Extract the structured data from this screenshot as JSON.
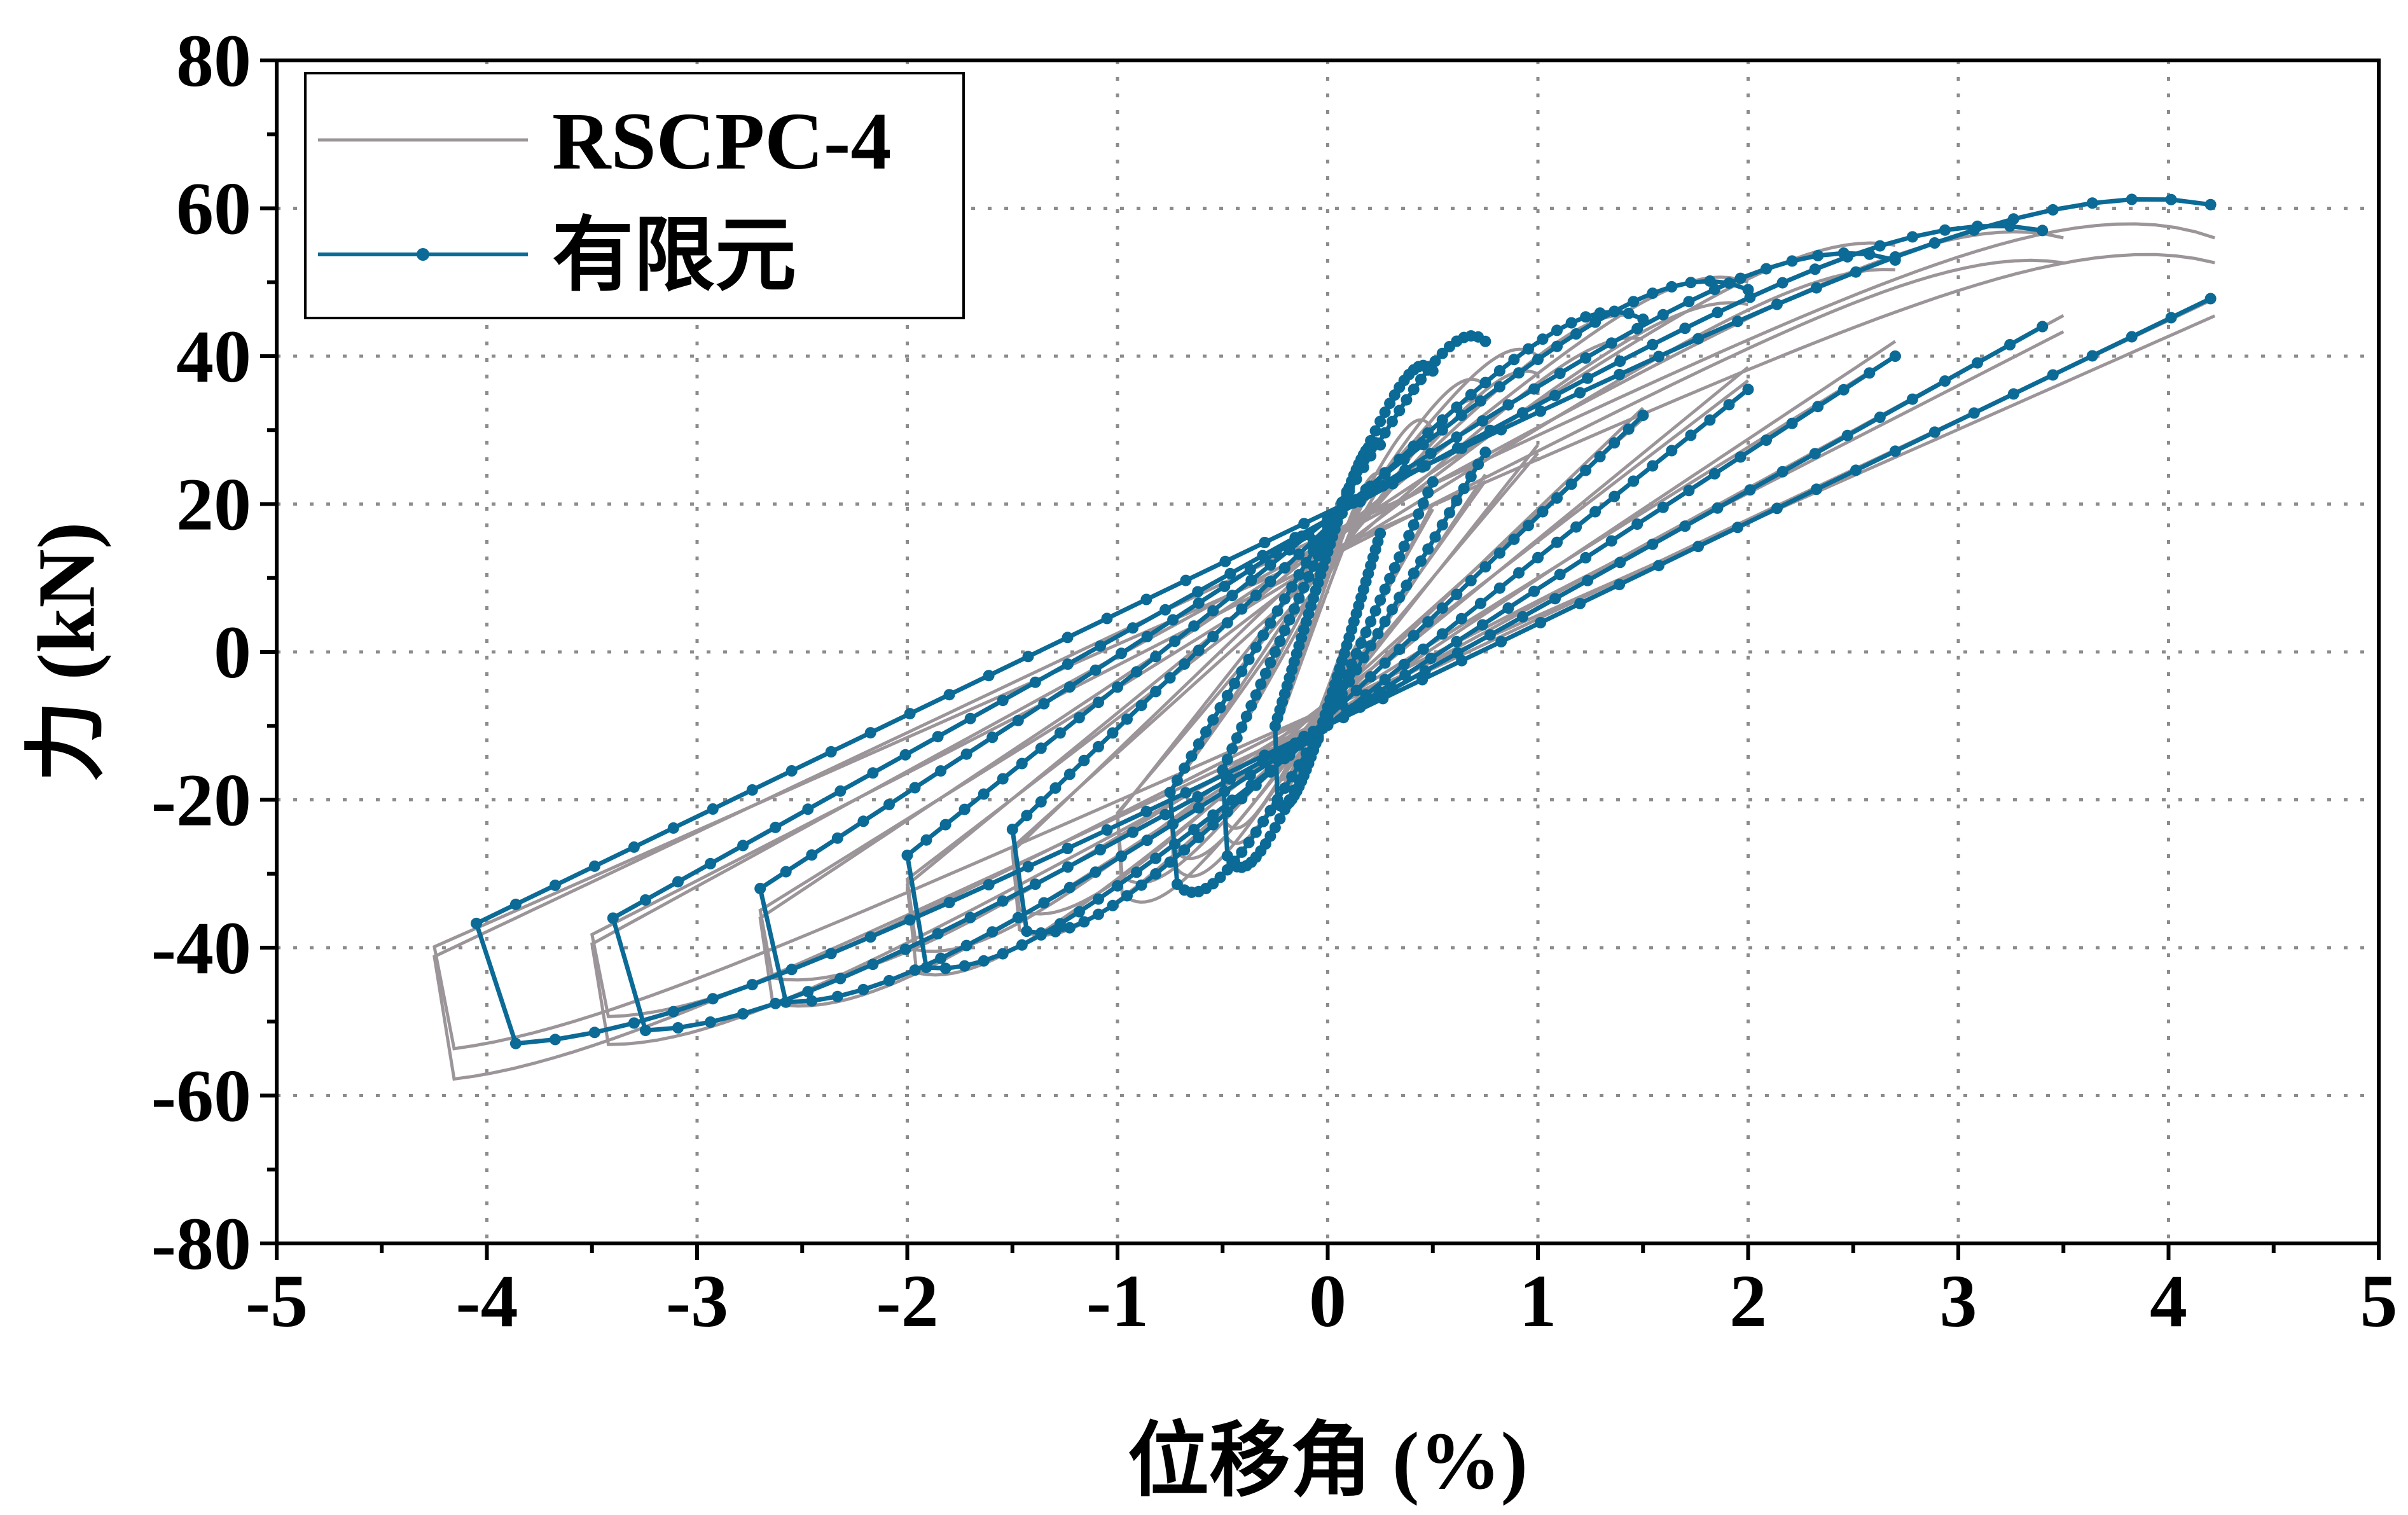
{
  "chart_data": {
    "type": "line",
    "title": "",
    "xlabel": "位移角 (%)",
    "ylabel": "力 (kN)",
    "xlim": [
      -5,
      5
    ],
    "ylim": [
      -80,
      80
    ],
    "x_ticks": [
      "-5",
      "-4",
      "-3",
      "-2",
      "-1",
      "0",
      "1",
      "2",
      "3",
      "4",
      "5"
    ],
    "y_ticks": [
      "80",
      "60",
      "40",
      "20",
      "0",
      "-20",
      "-40",
      "-60",
      "-80"
    ],
    "grid": true,
    "legend_position": "top-left",
    "colors": {
      "experiment": "#9b9599",
      "fem": "#0b6a96"
    },
    "series": [
      {
        "name": "RSCPC-4",
        "style": "line",
        "loops": [
          {
            "amp_pos": 0.25,
            "amp_neg": -0.25,
            "f_pos": 24,
            "f_neg": -18,
            "zero_pos": 10,
            "zero_neg": -6
          },
          {
            "amp_pos": 0.5,
            "amp_neg": -0.5,
            "f_pos": 30,
            "f_neg": -24,
            "zero_pos": 12,
            "zero_neg": -7
          },
          {
            "amp_pos": 0.75,
            "amp_neg": -0.75,
            "f_pos": 36,
            "f_neg": -28,
            "zero_pos": 13,
            "zero_neg": -8
          },
          {
            "amp_pos": 1.0,
            "amp_neg": -1.0,
            "f_pos": 40,
            "f_neg": -32,
            "zero_pos": 14,
            "zero_neg": -8
          },
          {
            "amp_pos": 1.5,
            "amp_neg": -1.5,
            "f_pos": 45,
            "f_neg": -37,
            "zero_pos": 14,
            "zero_neg": -8
          },
          {
            "amp_pos": 2.0,
            "amp_neg": -2.0,
            "f_pos": 50,
            "f_neg": -43,
            "zero_pos": 15,
            "zero_neg": -8
          },
          {
            "amp_pos": 2.7,
            "amp_neg": -2.7,
            "f_pos": 55,
            "f_neg": -47,
            "zero_pos": 15,
            "zero_neg": -9
          },
          {
            "amp_pos": 3.5,
            "amp_neg": -3.5,
            "f_pos": 56,
            "f_neg": -53,
            "zero_pos": 15,
            "zero_neg": -9
          },
          {
            "amp_pos": 4.22,
            "amp_neg": -4.25,
            "f_pos": 56,
            "f_neg": -58,
            "zero_pos": 16,
            "zero_neg": -9
          }
        ]
      },
      {
        "name": "有限元",
        "style": "line-marker",
        "loops": [
          {
            "amp_pos": 0.25,
            "amp_neg": -0.25,
            "f_pos": 28,
            "f_neg": -20,
            "zero_pos": 14,
            "zero_neg": -8
          },
          {
            "amp_pos": 0.5,
            "amp_neg": -0.5,
            "f_pos": 38,
            "f_neg": -26,
            "zero_pos": 16,
            "zero_neg": -9
          },
          {
            "amp_pos": 0.75,
            "amp_neg": -0.75,
            "f_pos": 42,
            "f_neg": -30,
            "zero_pos": 17,
            "zero_neg": -9
          },
          {
            "amp_pos": 1.5,
            "amp_neg": -1.5,
            "f_pos": 45,
            "f_neg": -37,
            "zero_pos": 17,
            "zero_neg": -9
          },
          {
            "amp_pos": 2.0,
            "amp_neg": -2.0,
            "f_pos": 49,
            "f_neg": -42,
            "zero_pos": 18,
            "zero_neg": -10
          },
          {
            "amp_pos": 2.7,
            "amp_neg": -2.7,
            "f_pos": 53,
            "f_neg": -47,
            "zero_pos": 18,
            "zero_neg": -10
          },
          {
            "amp_pos": 3.4,
            "amp_neg": -3.4,
            "f_pos": 57,
            "f_neg": -51,
            "zero_pos": 18,
            "zero_neg": -10
          },
          {
            "amp_pos": 4.2,
            "amp_neg": -4.05,
            "f_pos": 60.5,
            "f_neg": -53,
            "zero_pos": 19,
            "zero_neg": -10
          }
        ]
      }
    ]
  }
}
